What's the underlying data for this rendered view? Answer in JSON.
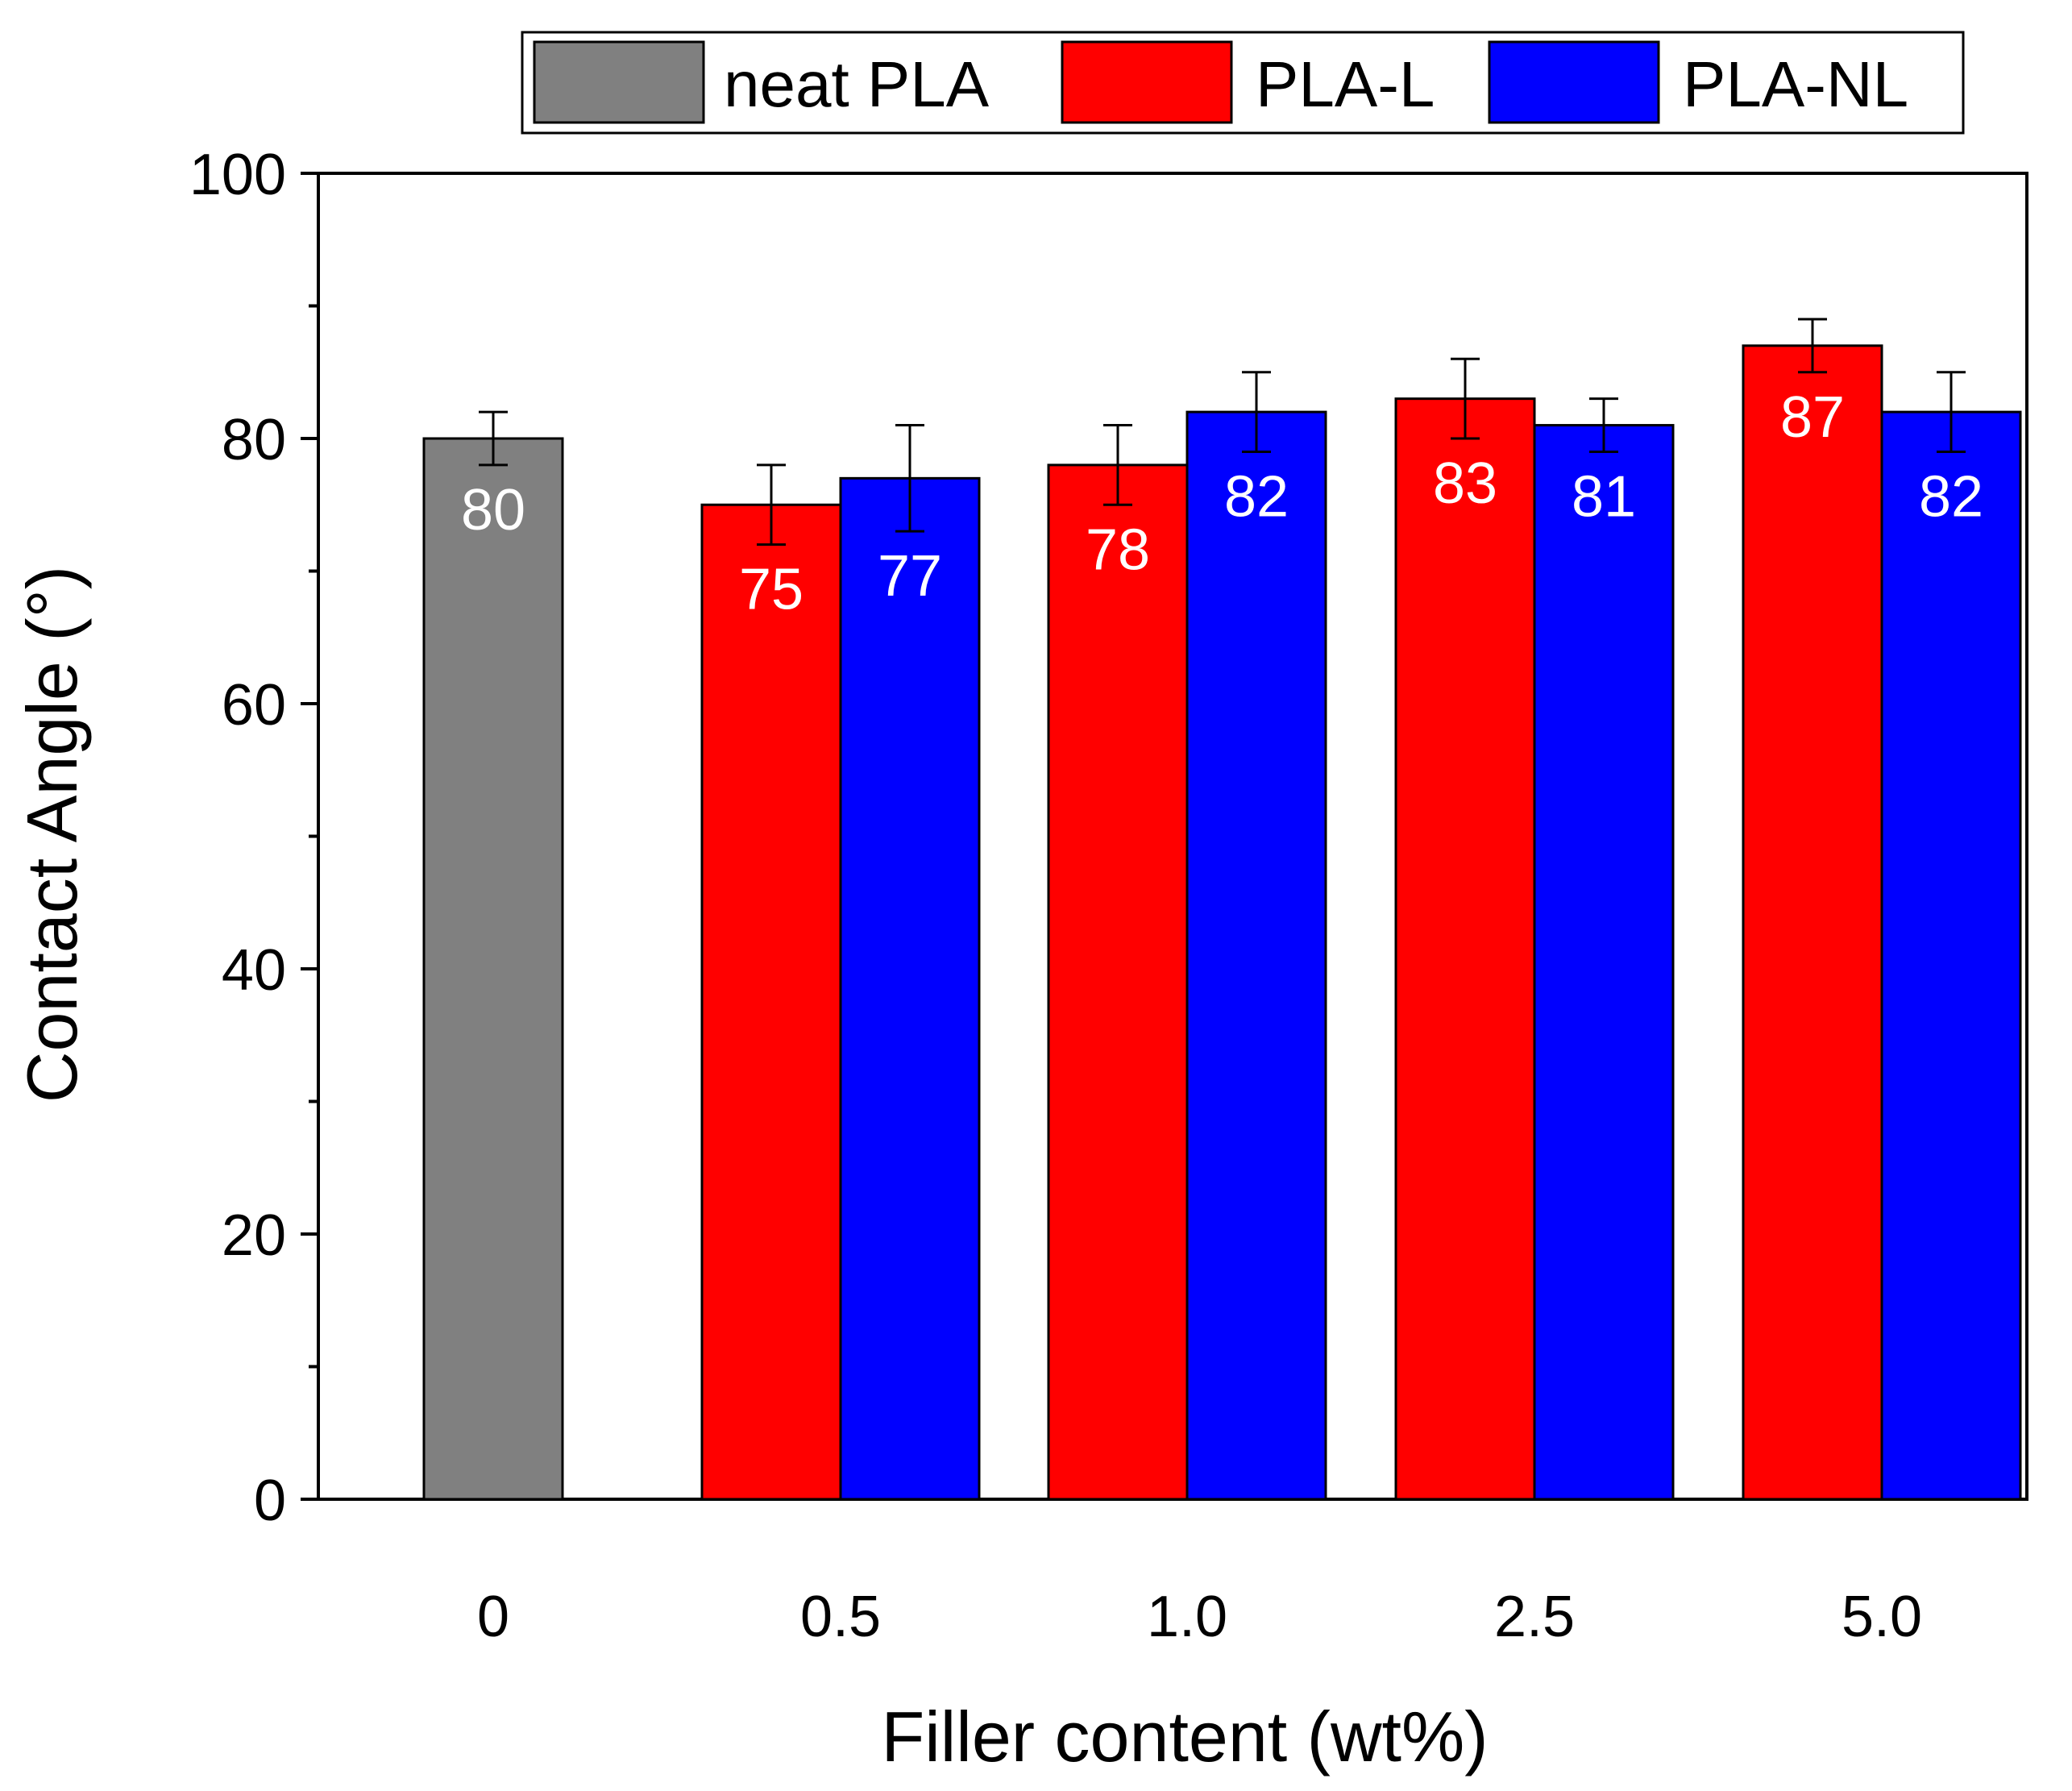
{
  "chart_data": {
    "type": "bar",
    "title": "",
    "xlabel": "Filler content (wt%)",
    "ylabel": "Contact Angle (°)",
    "ylim": [
      0,
      100
    ],
    "y_ticks": [
      0,
      20,
      40,
      60,
      80,
      100
    ],
    "y_minor_ticks": [
      10,
      30,
      50,
      70,
      90
    ],
    "grid": false,
    "legend_placement": "top",
    "categories": [
      "0",
      "0.5",
      "1.0",
      "2.5",
      "5.0"
    ],
    "series": [
      {
        "name": "neat PLA",
        "color": "#808080",
        "values": [
          80,
          null,
          null,
          null,
          null
        ],
        "errors": [
          2,
          null,
          null,
          null,
          null
        ],
        "labels": [
          "80",
          null,
          null,
          null,
          null
        ]
      },
      {
        "name": "PLA-L",
        "color": "#ff0000",
        "values": [
          null,
          75,
          78,
          83,
          87
        ],
        "errors": [
          null,
          3,
          3,
          3,
          2
        ],
        "labels": [
          null,
          "75",
          "78",
          "83",
          "87"
        ]
      },
      {
        "name": "PLA-NL",
        "color": "#0000ff",
        "values": [
          null,
          77,
          82,
          81,
          82
        ],
        "errors": [
          null,
          4,
          3,
          2,
          3
        ],
        "labels": [
          null,
          "77",
          "82",
          "81",
          "82"
        ]
      }
    ]
  }
}
